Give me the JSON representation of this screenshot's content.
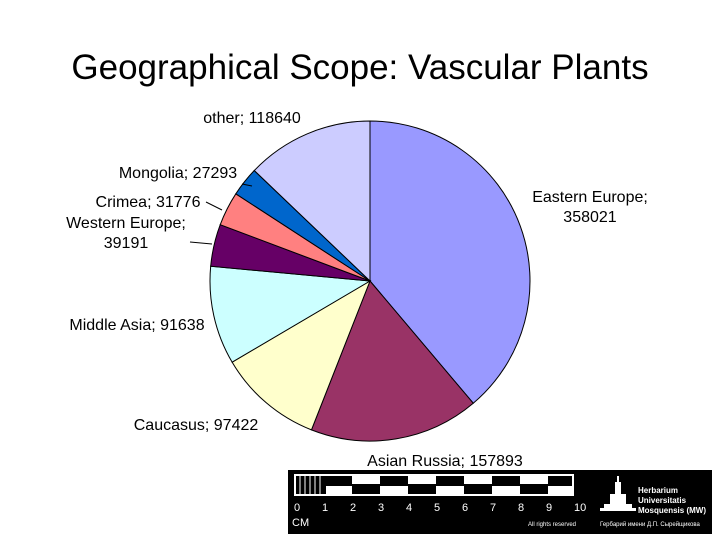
{
  "title": "Geographical Scope: Vascular Plants",
  "chart_data": {
    "type": "pie",
    "title": "Geographical Scope: Vascular Plants",
    "start_angle_deg": 0,
    "direction": "clockwise",
    "slices": [
      {
        "label": "Eastern Europe",
        "value": 358021,
        "color": "#9999ff",
        "label_lines": [
          "Eastern Europe;",
          "358021"
        ]
      },
      {
        "label": "Asian Russia",
        "value": 157893,
        "color": "#993366",
        "label_lines": [
          "Asian Russia; 157893"
        ]
      },
      {
        "label": "Caucasus",
        "value": 97422,
        "color": "#ffffcc",
        "label_lines": [
          "Caucasus; 97422"
        ]
      },
      {
        "label": "Middle Asia",
        "value": 91638,
        "color": "#ccffff",
        "label_lines": [
          "Middle Asia; 91638"
        ]
      },
      {
        "label": "Western Europe",
        "value": 39191,
        "color": "#660066",
        "label_lines": [
          "Western Europe;",
          "39191"
        ]
      },
      {
        "label": "Crimea",
        "value": 31776,
        "color": "#ff8080",
        "label_lines": [
          "Crimea; 31776"
        ]
      },
      {
        "label": "Mongolia",
        "value": 27293,
        "color": "#0066cc",
        "label_lines": [
          "Mongolia; 27293"
        ]
      },
      {
        "label": "other",
        "value": 118640,
        "color": "#ccccff",
        "label_lines": [
          "other; 118640"
        ]
      }
    ]
  },
  "scale_bar": {
    "numbers": [
      "0",
      "1",
      "2",
      "3",
      "4",
      "5",
      "6",
      "7",
      "8",
      "9",
      "10"
    ],
    "unit": "CM",
    "rights": "All rights reserved",
    "herbarium_lines": [
      "Herbarium",
      "Universitatis",
      "Mosquensis (MW)"
    ],
    "cyrillic_line": "Гербарий имени Д.П. Сырейщикова"
  }
}
